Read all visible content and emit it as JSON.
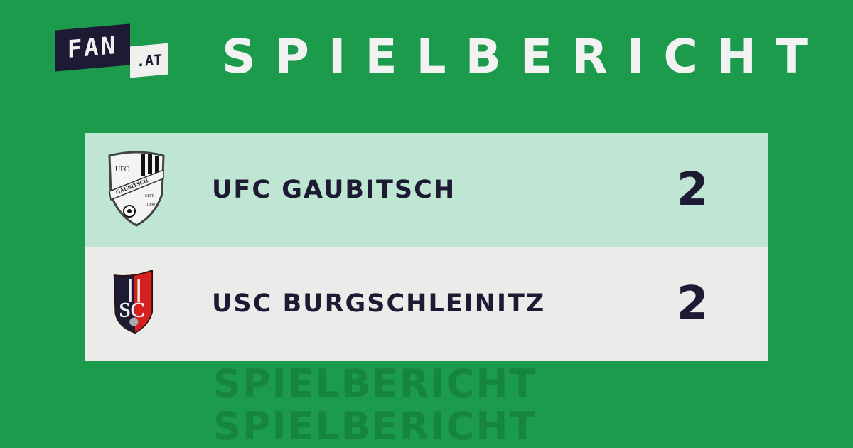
{
  "brand": {
    "logo_main": "FAN",
    "logo_suffix": ".AT"
  },
  "header": {
    "title": "SPIELBERICHT"
  },
  "watermark": {
    "word": "SPIELBERICHT"
  },
  "match": {
    "home": {
      "name": "UFC GAUBITSCH",
      "score": "2",
      "crest_text": [
        "UFC",
        "GAUBITSCH",
        "SEIT",
        "1980"
      ]
    },
    "away": {
      "name": "USC BURGSCHLEINITZ",
      "score": "2",
      "crest_text": [
        "USC"
      ]
    }
  },
  "colors": {
    "background": "#1b9b4b",
    "home_row": "#bfe5d3",
    "away_row": "#ebebea",
    "text": "#1c1b33"
  }
}
